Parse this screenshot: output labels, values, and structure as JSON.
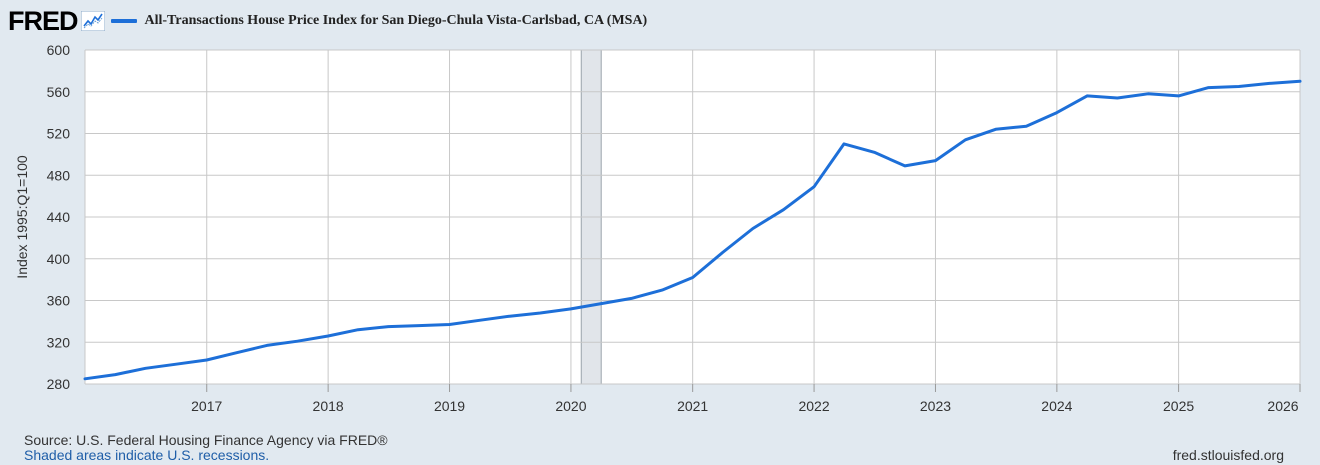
{
  "header": {
    "logo": "FRED",
    "series_title": "All-Transactions House Price Index for San Diego-Chula Vista-Carlsbad, CA (MSA)"
  },
  "footer": {
    "source": "U.S. Federal Housing Finance Agency via FRED®",
    "source_prefix": "Source: ",
    "shaded_note": "Shaded areas indicate U.S. recessions.",
    "site": "fred.stlouisfed.org"
  },
  "colors": {
    "line": "#1d6fd8",
    "recession": "#e1e5ea",
    "gridline": "#c8c8c8",
    "background": "#e1e9f0",
    "plot_bg": "#ffffff"
  },
  "chart_data": {
    "type": "line",
    "ylabel": "Index 1995:Q1=100",
    "ylim": [
      280,
      600
    ],
    "yticks": [
      280,
      320,
      360,
      400,
      440,
      480,
      520,
      560,
      600
    ],
    "xlim": [
      "2016-01-01",
      "2026-01-01"
    ],
    "xticks": [
      "2017",
      "2018",
      "2019",
      "2020",
      "2021",
      "2022",
      "2023",
      "2024",
      "2025",
      "2026"
    ],
    "grid": true,
    "recessions": [
      {
        "start": "2020-02-01",
        "end": "2020-04-01"
      }
    ],
    "series": [
      {
        "name": "All-Transactions House Price Index for San Diego-Chula Vista-Carlsbad, CA (MSA)",
        "points": [
          {
            "x": "2016-01-01",
            "y": 285
          },
          {
            "x": "2016-04-01",
            "y": 289
          },
          {
            "x": "2016-07-01",
            "y": 295
          },
          {
            "x": "2016-10-01",
            "y": 299
          },
          {
            "x": "2017-01-01",
            "y": 303
          },
          {
            "x": "2017-04-01",
            "y": 310
          },
          {
            "x": "2017-07-01",
            "y": 317
          },
          {
            "x": "2017-10-01",
            "y": 321
          },
          {
            "x": "2018-01-01",
            "y": 326
          },
          {
            "x": "2018-04-01",
            "y": 332
          },
          {
            "x": "2018-07-01",
            "y": 335
          },
          {
            "x": "2018-10-01",
            "y": 336
          },
          {
            "x": "2019-01-01",
            "y": 337
          },
          {
            "x": "2019-04-01",
            "y": 341
          },
          {
            "x": "2019-07-01",
            "y": 345
          },
          {
            "x": "2019-10-01",
            "y": 348
          },
          {
            "x": "2020-01-01",
            "y": 352
          },
          {
            "x": "2020-04-01",
            "y": 357
          },
          {
            "x": "2020-07-01",
            "y": 362
          },
          {
            "x": "2020-10-01",
            "y": 370
          },
          {
            "x": "2021-01-01",
            "y": 382
          },
          {
            "x": "2021-04-01",
            "y": 406
          },
          {
            "x": "2021-07-01",
            "y": 429
          },
          {
            "x": "2021-10-01",
            "y": 447
          },
          {
            "x": "2022-01-01",
            "y": 469
          },
          {
            "x": "2022-04-01",
            "y": 510
          },
          {
            "x": "2022-07-01",
            "y": 502
          },
          {
            "x": "2022-10-01",
            "y": 489
          },
          {
            "x": "2023-01-01",
            "y": 494
          },
          {
            "x": "2023-04-01",
            "y": 514
          },
          {
            "x": "2023-07-01",
            "y": 524
          },
          {
            "x": "2023-10-01",
            "y": 527
          },
          {
            "x": "2024-01-01",
            "y": 540
          },
          {
            "x": "2024-04-01",
            "y": 556
          },
          {
            "x": "2024-07-01",
            "y": 554
          },
          {
            "x": "2024-10-01",
            "y": 558
          },
          {
            "x": "2025-01-01",
            "y": 556
          },
          {
            "x": "2025-04-01",
            "y": 564
          },
          {
            "x": "2025-07-01",
            "y": 565
          },
          {
            "x": "2025-10-01",
            "y": 568
          },
          {
            "x": "2026-01-01",
            "y": 570
          }
        ]
      }
    ]
  }
}
